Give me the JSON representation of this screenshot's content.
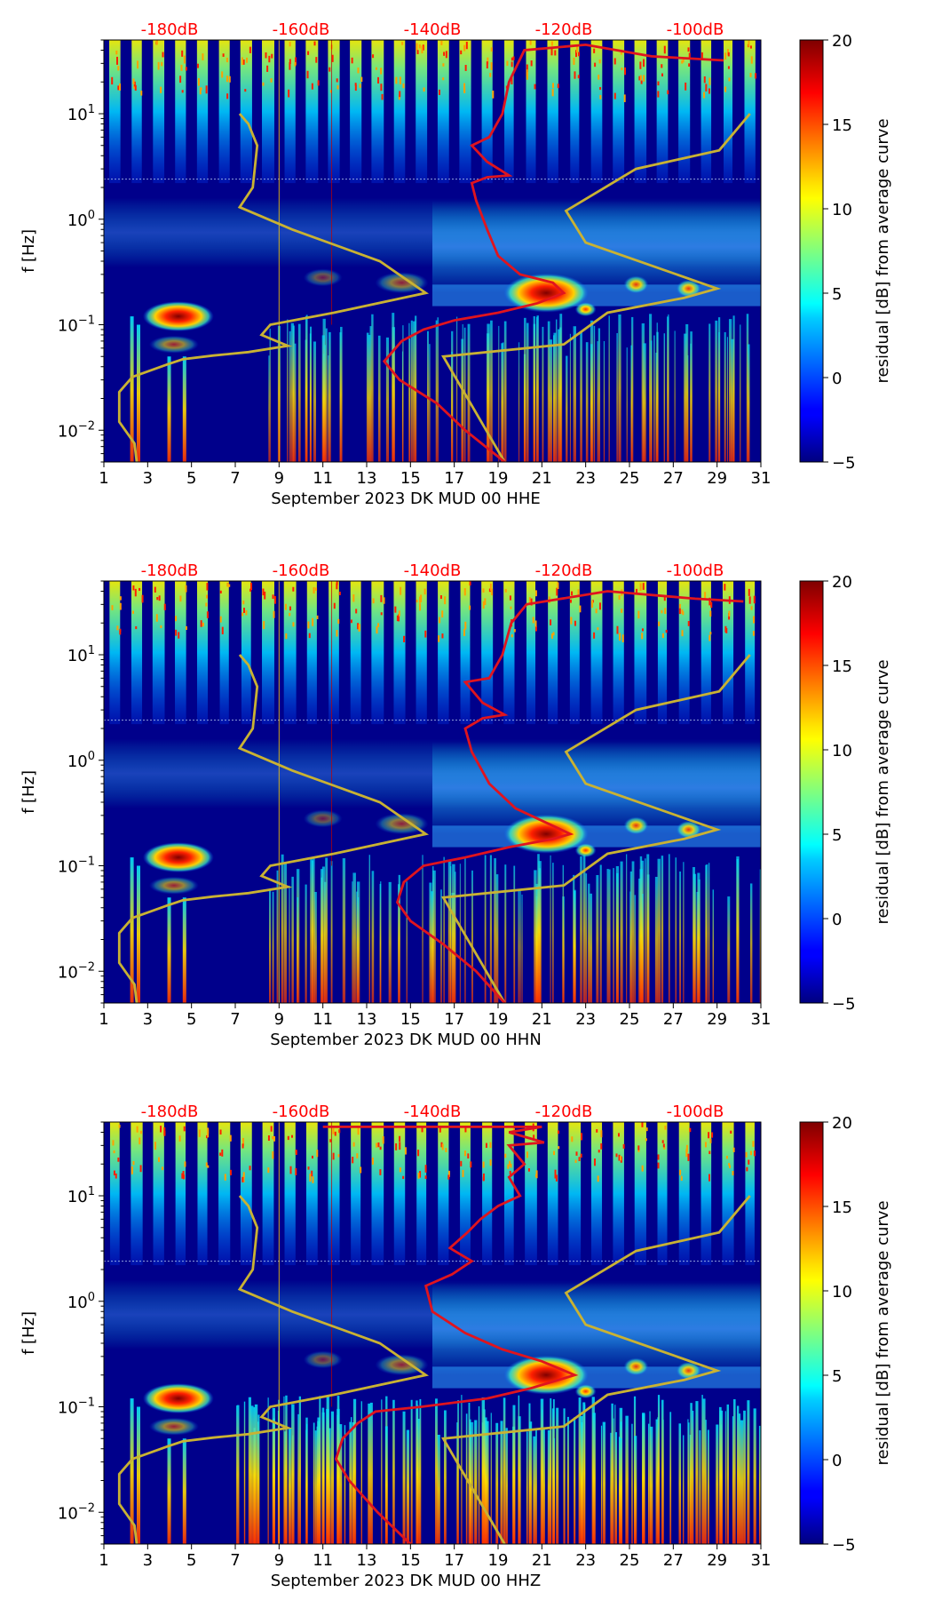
{
  "colors": {
    "db_labels": "#ff0000",
    "red_curve": "#e0141e",
    "model_curve": "#c9b233",
    "background": "#00008b"
  },
  "colorbar": {
    "label": "residual [dB] from average curve",
    "ticks": [
      "20",
      "15",
      "10",
      "5",
      "0",
      "−5"
    ],
    "range": [
      -5,
      20
    ],
    "colormap": "jet"
  },
  "chart_data": [
    {
      "type": "heatmap",
      "title": "",
      "xlabel": "September 2023 DK MUD 00 HHE",
      "ylabel": "f [Hz]",
      "x_ticks": [
        "1",
        "3",
        "5",
        "7",
        "9",
        "11",
        "13",
        "15",
        "17",
        "19",
        "21",
        "23",
        "25",
        "27",
        "29",
        "31"
      ],
      "y_ticks": [
        "10^1",
        "10^0",
        "10^-1",
        "10^-2"
      ],
      "y_tick_base": "10",
      "y_tick_exps": [
        "1",
        "0",
        "−1",
        "−2"
      ],
      "xlim": [
        1,
        31
      ],
      "ylim_hz": [
        0.005,
        50
      ],
      "top_axis_labels": [
        "-180dB",
        "-160dB",
        "-140dB",
        "-120dB",
        "-100dB"
      ],
      "top_axis_positions_day": [
        4,
        10,
        16,
        22,
        28
      ],
      "series": [
        {
          "name": "station noise curve (red)",
          "points_day_hz": [
            [
              19.3,
              0.005
            ],
            [
              17.5,
              0.01
            ],
            [
              16.2,
              0.018
            ],
            [
              14.5,
              0.03
            ],
            [
              13.8,
              0.045
            ],
            [
              14.6,
              0.07
            ],
            [
              15.6,
              0.09
            ],
            [
              17.0,
              0.11
            ],
            [
              19.0,
              0.13
            ],
            [
              20.8,
              0.16
            ],
            [
              22.0,
              0.2
            ],
            [
              21.5,
              0.25
            ],
            [
              20.0,
              0.3
            ],
            [
              19.0,
              0.45
            ],
            [
              18.5,
              0.8
            ],
            [
              18.0,
              1.5
            ],
            [
              17.8,
              2.2
            ],
            [
              18.5,
              2.5
            ],
            [
              19.5,
              2.6
            ],
            [
              18.5,
              3.5
            ],
            [
              17.8,
              5.0
            ],
            [
              18.6,
              6.0
            ],
            [
              19.2,
              10
            ],
            [
              19.5,
              20
            ],
            [
              20.2,
              40
            ],
            [
              23,
              45
            ],
            [
              26,
              35
            ],
            [
              29.3,
              32
            ]
          ]
        },
        {
          "name": "NLNM/NHNM model curves (olive)",
          "points_day_hz": [
            [
              2.5,
              0.005
            ],
            [
              2.4,
              0.0075
            ],
            [
              1.7,
              0.012
            ],
            [
              1.7,
              0.023
            ],
            [
              2.3,
              0.032
            ],
            [
              3.9,
              0.042
            ],
            [
              4.6,
              0.047
            ],
            [
              6,
              0.051
            ],
            [
              7.6,
              0.055
            ],
            [
              9.4,
              0.063
            ],
            [
              8.2,
              0.08
            ],
            [
              8.6,
              0.1
            ],
            [
              11.5,
              0.13
            ],
            [
              15.7,
              0.2
            ],
            [
              13.6,
              0.4
            ],
            [
              9.6,
              0.8
            ],
            [
              7.2,
              1.3
            ],
            [
              7.8,
              2
            ],
            [
              8.0,
              5
            ],
            [
              7.6,
              8
            ],
            [
              7.2,
              10
            ]
          ]
        },
        {
          "name": "high noise model (olive)",
          "points_day_hz": [
            [
              19.3,
              0.005
            ],
            [
              16.5,
              0.05
            ],
            [
              22,
              0.065
            ],
            [
              24,
              0.13
            ],
            [
              27.5,
              0.18
            ],
            [
              29,
              0.22
            ],
            [
              23,
              0.6
            ],
            [
              22.1,
              1.2
            ],
            [
              25.3,
              3.0
            ],
            [
              29.1,
              4.5
            ],
            [
              30.5,
              10
            ]
          ]
        }
      ]
    },
    {
      "type": "heatmap",
      "title": "",
      "xlabel": "September 2023 DK MUD 00 HHN",
      "ylabel": "f [Hz]",
      "x_ticks": [
        "1",
        "3",
        "5",
        "7",
        "9",
        "11",
        "13",
        "15",
        "17",
        "19",
        "21",
        "23",
        "25",
        "27",
        "29",
        "31"
      ],
      "y_ticks": [
        "10^1",
        "10^0",
        "10^-1",
        "10^-2"
      ],
      "y_tick_base": "10",
      "y_tick_exps": [
        "1",
        "0",
        "−1",
        "−2"
      ],
      "xlim": [
        1,
        31
      ],
      "ylim_hz": [
        0.005,
        50
      ],
      "top_axis_labels": [
        "-180dB",
        "-160dB",
        "-140dB",
        "-120dB",
        "-100dB"
      ],
      "top_axis_positions_day": [
        4,
        10,
        16,
        22,
        28
      ],
      "series": [
        {
          "name": "station noise curve (red)",
          "points_day_hz": [
            [
              19.3,
              0.005
            ],
            [
              18.0,
              0.01
            ],
            [
              16.5,
              0.018
            ],
            [
              15.0,
              0.03
            ],
            [
              14.4,
              0.045
            ],
            [
              14.7,
              0.07
            ],
            [
              15.6,
              0.1
            ],
            [
              17.5,
              0.12
            ],
            [
              19.5,
              0.15
            ],
            [
              21.5,
              0.18
            ],
            [
              22.3,
              0.2
            ],
            [
              21.3,
              0.25
            ],
            [
              19.8,
              0.35
            ],
            [
              18.6,
              0.6
            ],
            [
              17.8,
              1.2
            ],
            [
              17.5,
              2.0
            ],
            [
              18.3,
              2.5
            ],
            [
              19.3,
              2.7
            ],
            [
              18.3,
              3.5
            ],
            [
              17.5,
              5.5
            ],
            [
              18.6,
              6.0
            ],
            [
              19.2,
              10
            ],
            [
              19.6,
              20
            ],
            [
              20.3,
              30
            ],
            [
              24,
              40
            ],
            [
              28,
              34
            ],
            [
              30.2,
              32
            ]
          ]
        },
        {
          "name": "NLNM/NHNM model curves (olive)",
          "points_day_hz": [
            [
              2.5,
              0.005
            ],
            [
              2.4,
              0.0075
            ],
            [
              1.7,
              0.012
            ],
            [
              1.7,
              0.023
            ],
            [
              2.3,
              0.032
            ],
            [
              3.9,
              0.042
            ],
            [
              4.6,
              0.047
            ],
            [
              6,
              0.051
            ],
            [
              7.6,
              0.055
            ],
            [
              9.4,
              0.063
            ],
            [
              8.2,
              0.08
            ],
            [
              8.6,
              0.1
            ],
            [
              11.5,
              0.13
            ],
            [
              15.7,
              0.2
            ],
            [
              13.6,
              0.4
            ],
            [
              9.6,
              0.8
            ],
            [
              7.2,
              1.3
            ],
            [
              7.8,
              2
            ],
            [
              8.0,
              5
            ],
            [
              7.6,
              8
            ],
            [
              7.2,
              10
            ]
          ]
        },
        {
          "name": "high noise model (olive)",
          "points_day_hz": [
            [
              19.3,
              0.005
            ],
            [
              16.5,
              0.05
            ],
            [
              22,
              0.065
            ],
            [
              24,
              0.13
            ],
            [
              27.5,
              0.18
            ],
            [
              29,
              0.22
            ],
            [
              23,
              0.6
            ],
            [
              22.1,
              1.2
            ],
            [
              25.3,
              3.0
            ],
            [
              29.1,
              4.5
            ],
            [
              30.5,
              10
            ]
          ]
        }
      ]
    },
    {
      "type": "heatmap",
      "title": "",
      "xlabel": "September 2023 DK MUD 00 HHZ",
      "ylabel": "f [Hz]",
      "x_ticks": [
        "1",
        "3",
        "5",
        "7",
        "9",
        "11",
        "13",
        "15",
        "17",
        "19",
        "21",
        "23",
        "25",
        "27",
        "29",
        "31"
      ],
      "y_ticks": [
        "10^1",
        "10^0",
        "10^-1",
        "10^-2"
      ],
      "y_tick_base": "10",
      "y_tick_exps": [
        "1",
        "0",
        "−1",
        "−2"
      ],
      "xlim": [
        1,
        31
      ],
      "ylim_hz": [
        0.005,
        50
      ],
      "top_axis_labels": [
        "-180dB",
        "-160dB",
        "-140dB",
        "-120dB",
        "-100dB"
      ],
      "top_axis_positions_day": [
        4,
        10,
        16,
        22,
        28
      ],
      "series": [
        {
          "name": "station noise curve (red)",
          "points_day_hz": [
            [
              15.0,
              0.005
            ],
            [
              13.5,
              0.01
            ],
            [
              12.2,
              0.02
            ],
            [
              11.6,
              0.032
            ],
            [
              11.9,
              0.05
            ],
            [
              12.6,
              0.07
            ],
            [
              13.4,
              0.09
            ],
            [
              15.5,
              0.1
            ],
            [
              18.5,
              0.12
            ],
            [
              20.5,
              0.15
            ],
            [
              22.5,
              0.2
            ],
            [
              21.0,
              0.27
            ],
            [
              19.2,
              0.35
            ],
            [
              17.5,
              0.5
            ],
            [
              16.0,
              0.8
            ],
            [
              15.7,
              1.4
            ],
            [
              16.9,
              1.8
            ],
            [
              17.8,
              2.4
            ],
            [
              16.8,
              3.2
            ],
            [
              17.6,
              4.5
            ],
            [
              18.2,
              6
            ],
            [
              19.0,
              8
            ],
            [
              20.0,
              10
            ],
            [
              19.5,
              15
            ],
            [
              20.2,
              20
            ],
            [
              19.5,
              30
            ],
            [
              21.1,
              32
            ],
            [
              19.5,
              40
            ],
            [
              21.0,
              45
            ],
            [
              11.0,
              45
            ]
          ]
        },
        {
          "name": "NLNM/NHNM model curves (olive)",
          "points_day_hz": [
            [
              2.5,
              0.005
            ],
            [
              2.4,
              0.0075
            ],
            [
              1.7,
              0.012
            ],
            [
              1.7,
              0.023
            ],
            [
              2.3,
              0.032
            ],
            [
              3.9,
              0.042
            ],
            [
              4.6,
              0.047
            ],
            [
              6,
              0.051
            ],
            [
              7.6,
              0.055
            ],
            [
              9.4,
              0.063
            ],
            [
              8.2,
              0.08
            ],
            [
              8.6,
              0.1
            ],
            [
              11.5,
              0.13
            ],
            [
              15.7,
              0.2
            ],
            [
              13.6,
              0.4
            ],
            [
              9.6,
              0.8
            ],
            [
              7.2,
              1.3
            ],
            [
              7.8,
              2
            ],
            [
              8.0,
              5
            ],
            [
              7.6,
              8
            ],
            [
              7.2,
              10
            ]
          ]
        },
        {
          "name": "high noise model (olive)",
          "points_day_hz": [
            [
              19.3,
              0.005
            ],
            [
              16.5,
              0.05
            ],
            [
              22,
              0.065
            ],
            [
              24,
              0.13
            ],
            [
              27.5,
              0.18
            ],
            [
              29,
              0.22
            ],
            [
              23,
              0.6
            ],
            [
              22.1,
              1.2
            ],
            [
              25.3,
              3.0
            ],
            [
              29.1,
              4.5
            ],
            [
              30.5,
              10
            ]
          ]
        }
      ]
    }
  ]
}
